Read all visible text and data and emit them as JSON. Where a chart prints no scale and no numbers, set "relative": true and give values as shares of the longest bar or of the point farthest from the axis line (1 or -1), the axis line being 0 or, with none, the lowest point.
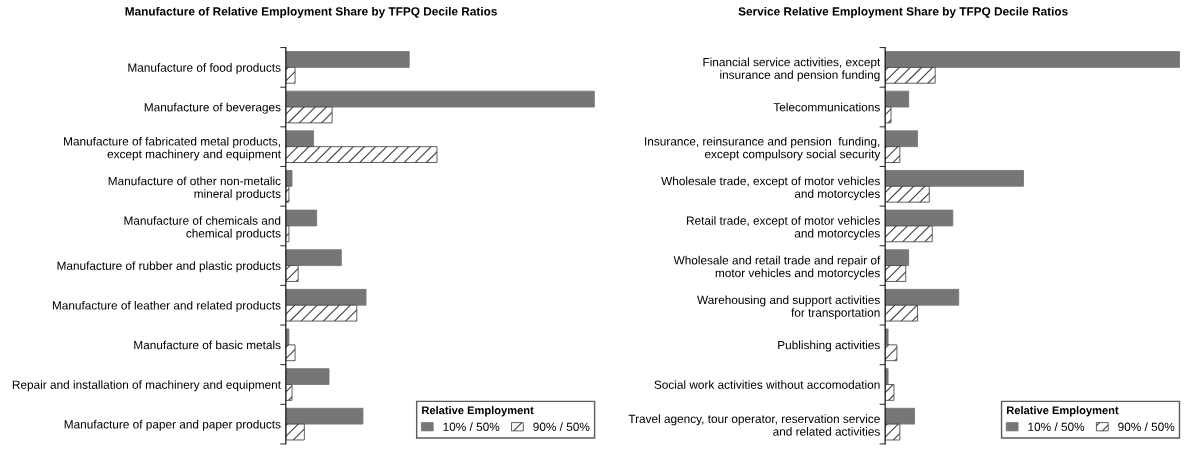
{
  "chart_data": [
    {
      "type": "bar",
      "orientation": "horizontal",
      "relative": true,
      "title": "Manufacture of Relative Employment Share by TFPQ Decile Ratios",
      "legend_title": "Relative Employment",
      "legend": "bottom right",
      "grid": false,
      "categories": [
        "Manufacture of food products",
        "Manufacture of beverages",
        "Manufacture of fabricated metal products,\nexcept machinery and equipment",
        "Manufacture of other non-metalic\nmineral products",
        "Manufacture of chemicals and\nchemical products",
        "Manufacture of rubber and plastic products",
        "Manufacture of leather and related products",
        "Manufacture of basic metals",
        "Repair and installation of machinery and equipment",
        "Manufacture of paper and paper products"
      ],
      "series": [
        {
          "name": "10% / 50%",
          "color": "#767676",
          "values": [
            0.4,
            1.0,
            0.09,
            0.02,
            0.1,
            0.18,
            0.26,
            0.01,
            0.14,
            0.25
          ]
        },
        {
          "name": "90% / 50%",
          "color": "#404040",
          "values": [
            0.03,
            0.15,
            0.49,
            0.01,
            0.01,
            0.04,
            0.23,
            0.03,
            0.02,
            0.06
          ]
        }
      ]
    },
    {
      "type": "bar",
      "orientation": "horizontal",
      "relative": true,
      "title": "Service Relative Employment Share by TFPQ Decile Ratios",
      "legend_title": "Relative Employment",
      "legend": "bottom right",
      "grid": false,
      "categories": [
        "Financial service activities, except\ninsurance and pension funding",
        "Telecommunications",
        "Insurance, reinsurance and pension  funding,\nexcept compulsory social security",
        "Wholesale trade, except of motor vehicles\nand motorcycles",
        "Retail trade, except of motor vehicles\nand motorcycles",
        "Wholesale and retail trade and repair of\nmotor vehicles and motorcycles",
        "Warehousing and support activities\nfor transportation",
        "Publishing activities",
        "Social work activities without accomodation",
        "Travel agency, tour operator, reservation service\nand related activities"
      ],
      "series": [
        {
          "name": "10% / 50%",
          "color": "#767676",
          "values": [
            1.0,
            0.08,
            0.11,
            0.47,
            0.23,
            0.08,
            0.25,
            0.01,
            0.01,
            0.1
          ]
        },
        {
          "name": "90% / 50%",
          "color": "#404040",
          "values": [
            0.17,
            0.02,
            0.05,
            0.15,
            0.16,
            0.07,
            0.11,
            0.04,
            0.03,
            0.05
          ]
        }
      ]
    }
  ]
}
